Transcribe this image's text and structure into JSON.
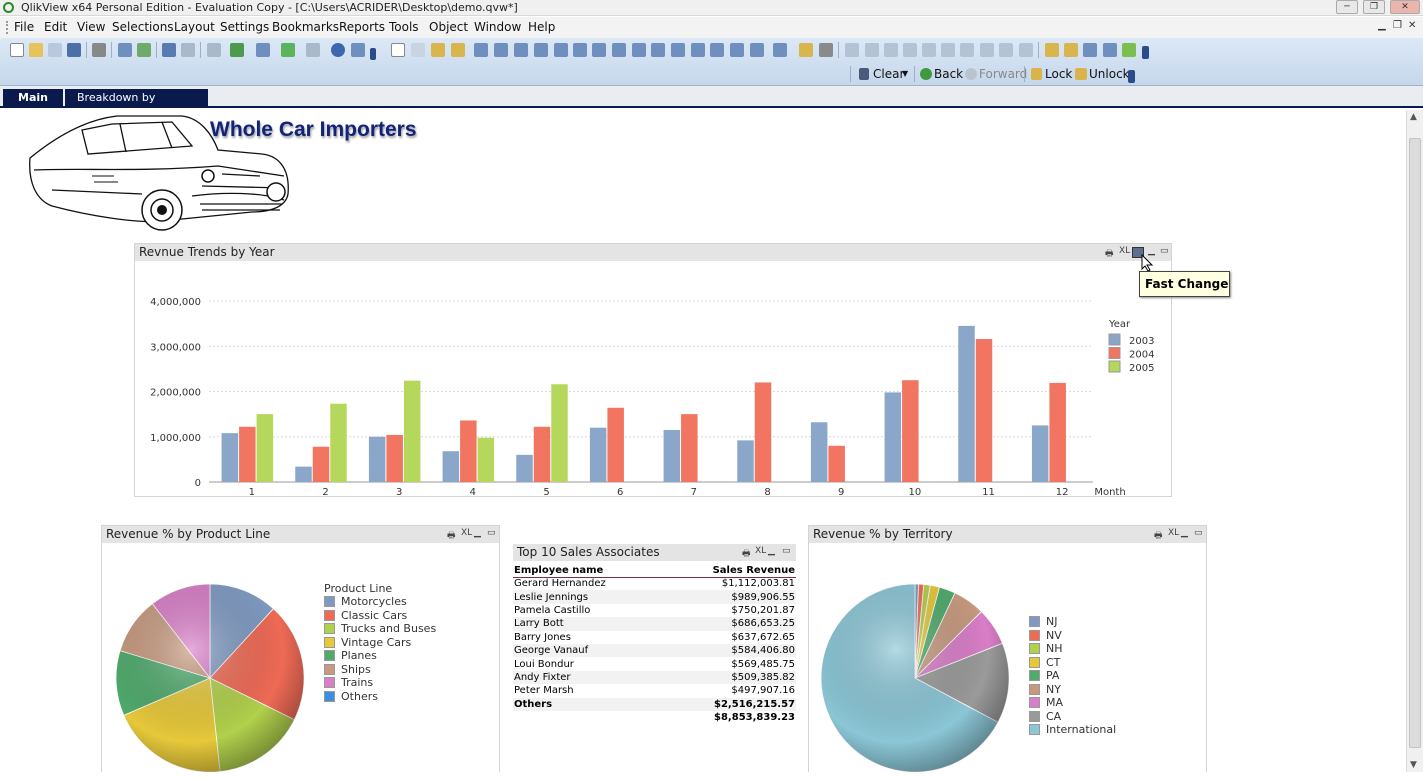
{
  "window": {
    "title": "QlikView x64 Personal Edition - Evaluation Copy - [C:\\Users\\ACRIDER\\Desktop\\demo.qvw*]"
  },
  "menu": [
    "File",
    "Edit",
    "View",
    "Selections",
    "Layout",
    "Settings",
    "Bookmarks",
    "Reports",
    "Tools",
    "Object",
    "Window",
    "Help"
  ],
  "toolbar": {
    "clear": "Clear",
    "back": "Back",
    "forward": "Forward",
    "lock": "Lock",
    "unlock": "Unlock"
  },
  "tabs": [
    "Main",
    "Breakdown by Product"
  ],
  "brand": "Whole Car Importers",
  "tooltip": "Fast Change",
  "colors": {
    "2003": "#8aa6c8",
    "2004": "#f27561",
    "2005": "#b5d85c",
    "tab_bg": "#0b1a4d",
    "brand": "#12237a"
  },
  "trend": {
    "title": "Revnue Trends by Year",
    "caption_icons": [
      "XL"
    ],
    "legend_title": "Year",
    "xlabel": "Month",
    "chart_data": {
      "type": "bar",
      "title": "Revnue Trends by Year",
      "xlabel": "Month",
      "ylabel": "",
      "categories": [
        "1",
        "2",
        "3",
        "4",
        "5",
        "6",
        "7",
        "8",
        "9",
        "10",
        "11",
        "12"
      ],
      "ylim": [
        0,
        4000000
      ],
      "yticks": [
        "0",
        "1,000,000",
        "2,000,000",
        "3,000,000",
        "4,000,000"
      ],
      "legend_position": "right",
      "grid": true,
      "series": [
        {
          "name": "2003",
          "values": [
            1080000,
            340000,
            1000000,
            680000,
            600000,
            1200000,
            1150000,
            920000,
            1320000,
            1980000,
            3450000,
            1250000
          ]
        },
        {
          "name": "2004",
          "values": [
            1220000,
            780000,
            1040000,
            1360000,
            1220000,
            1640000,
            1500000,
            2200000,
            800000,
            2250000,
            3160000,
            2190000
          ]
        },
        {
          "name": "2005",
          "values": [
            1500000,
            1730000,
            2240000,
            980000,
            2160000,
            null,
            null,
            null,
            null,
            null,
            null,
            null
          ]
        }
      ]
    }
  },
  "productline": {
    "title": "Revenue % by Product Line",
    "legend_title": "Product Line",
    "chart_data": {
      "type": "pie",
      "title": "Revenue % by Product Line",
      "legend_position": "right",
      "labels": [
        "Motorcycles",
        "Classic Cars",
        "Trucks and Buses",
        "Vintage Cars",
        "Planes",
        "Ships",
        "Trains",
        "Others"
      ],
      "values": [
        11.8,
        20.5,
        16.0,
        20.2,
        11.2,
        9.8,
        10.5,
        0.0
      ],
      "colors": [
        "#7f9ac2",
        "#ee6a55",
        "#b1d04c",
        "#e6c83a",
        "#4faa6c",
        "#c79a80",
        "#d97ec8",
        "#3a8fe0"
      ]
    }
  },
  "associates": {
    "title": "Top 10 Sales Associates",
    "headers": [
      "Employee name",
      "Sales Revenue"
    ],
    "rows": [
      [
        "Gerard Hernandez",
        "$1,112,003.81"
      ],
      [
        "Leslie Jennings",
        "$989,906.55"
      ],
      [
        "Pamela Castillo",
        "$750,201.87"
      ],
      [
        "Larry Bott",
        "$686,653.25"
      ],
      [
        "Barry Jones",
        "$637,672.65"
      ],
      [
        "George Vanauf",
        "$584,406.80"
      ],
      [
        "Loui Bondur",
        "$569,485.75"
      ],
      [
        "Andy Fixter",
        "$509,385.82"
      ],
      [
        "Peter Marsh",
        "$497,907.16"
      ]
    ],
    "others": [
      "Others",
      "$2,516,215.57"
    ],
    "total": [
      "",
      "$8,853,839.23"
    ]
  },
  "territory": {
    "title": "Revenue % by Territory",
    "chart_data": {
      "type": "pie",
      "title": "Revenue % by Territory",
      "legend_position": "right",
      "labels": [
        "NJ",
        "NV",
        "NH",
        "CT",
        "PA",
        "NY",
        "MA",
        "CA",
        "International"
      ],
      "values": [
        0.6,
        0.9,
        1.1,
        1.6,
        2.8,
        5.5,
        6.5,
        13.8,
        67.2
      ],
      "colors": [
        "#7f9ac2",
        "#ee6a55",
        "#b1d04c",
        "#e6c83a",
        "#4faa6c",
        "#c79a80",
        "#d97ec8",
        "#9a9a9a",
        "#8bc6d6"
      ]
    }
  }
}
